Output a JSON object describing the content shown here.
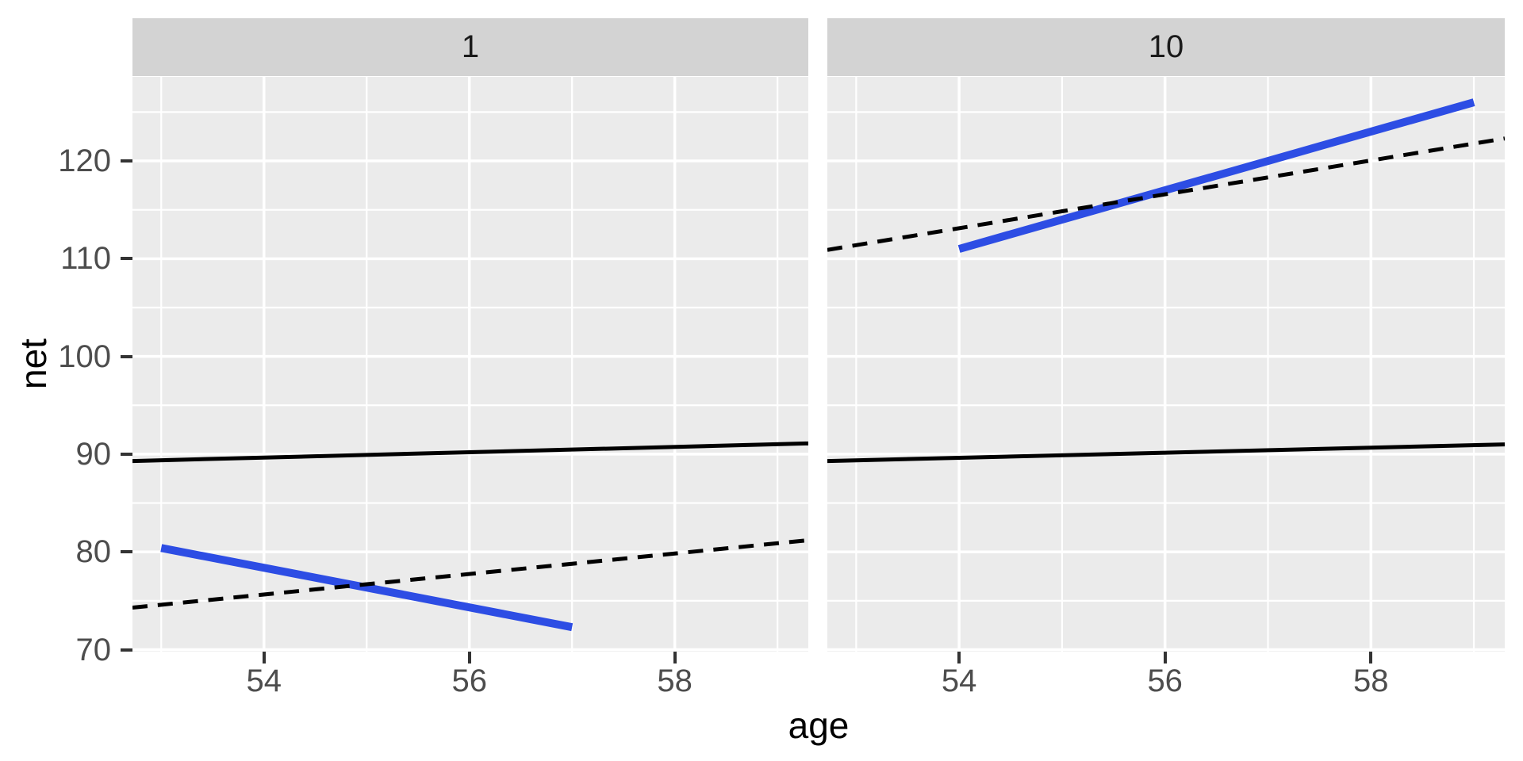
{
  "chart_data": {
    "type": "line",
    "title": "",
    "xlabel": "age",
    "ylabel": "net",
    "legend": "none",
    "facet_labels": [
      "1",
      "10"
    ],
    "x_ticks": [
      54,
      56,
      58
    ],
    "y_ticks": [
      70,
      80,
      90,
      100,
      110,
      120
    ],
    "x_minor_gridlines": [
      53,
      55,
      57,
      59
    ],
    "y_minor_gridlines": [
      75,
      85,
      95,
      105,
      115,
      125
    ],
    "xlim": [
      52.72,
      59.3
    ],
    "ylim": [
      69.8,
      128.6
    ],
    "grid": "white major and minor gridlines on grey panel",
    "facets": [
      {
        "label": "1",
        "series": [
          {
            "name": "solid-black-line",
            "linetype": "solid",
            "color": "#000000",
            "width": 5,
            "points": [
              [
                52.72,
                89.3
              ],
              [
                59.3,
                91.1
              ]
            ]
          },
          {
            "name": "thick-blue-line",
            "linetype": "solid",
            "color": "#2D4DE4",
            "width": 10,
            "points": [
              [
                53.0,
                80.4
              ],
              [
                57.0,
                72.3
              ]
            ]
          },
          {
            "name": "dashed-black-line",
            "linetype": "dashed",
            "color": "#000000",
            "width": 5,
            "points": [
              [
                52.72,
                74.3
              ],
              [
                59.3,
                81.2
              ]
            ]
          }
        ]
      },
      {
        "label": "10",
        "series": [
          {
            "name": "solid-black-line",
            "linetype": "solid",
            "color": "#000000",
            "width": 5,
            "points": [
              [
                52.72,
                89.3
              ],
              [
                59.3,
                91.0
              ]
            ]
          },
          {
            "name": "thick-blue-line",
            "linetype": "solid",
            "color": "#2D4DE4",
            "width": 10,
            "points": [
              [
                54.0,
                111.0
              ],
              [
                59.0,
                126.0
              ]
            ]
          },
          {
            "name": "dashed-black-line",
            "linetype": "dashed",
            "color": "#000000",
            "width": 5,
            "points": [
              [
                52.72,
                110.9
              ],
              [
                59.3,
                122.3
              ]
            ]
          }
        ]
      }
    ],
    "colors": {
      "background": "#FFFFFF",
      "panel_background": "#EBEBEB",
      "strip_background": "#D3D3D3",
      "gridline": "#FFFFFF",
      "tick_mark": "#333333",
      "tick_label": "#4D4D4D",
      "axis_title": "#000000",
      "strip_text": "#1A1A1A",
      "blue_line": "#2D4DE4"
    }
  }
}
